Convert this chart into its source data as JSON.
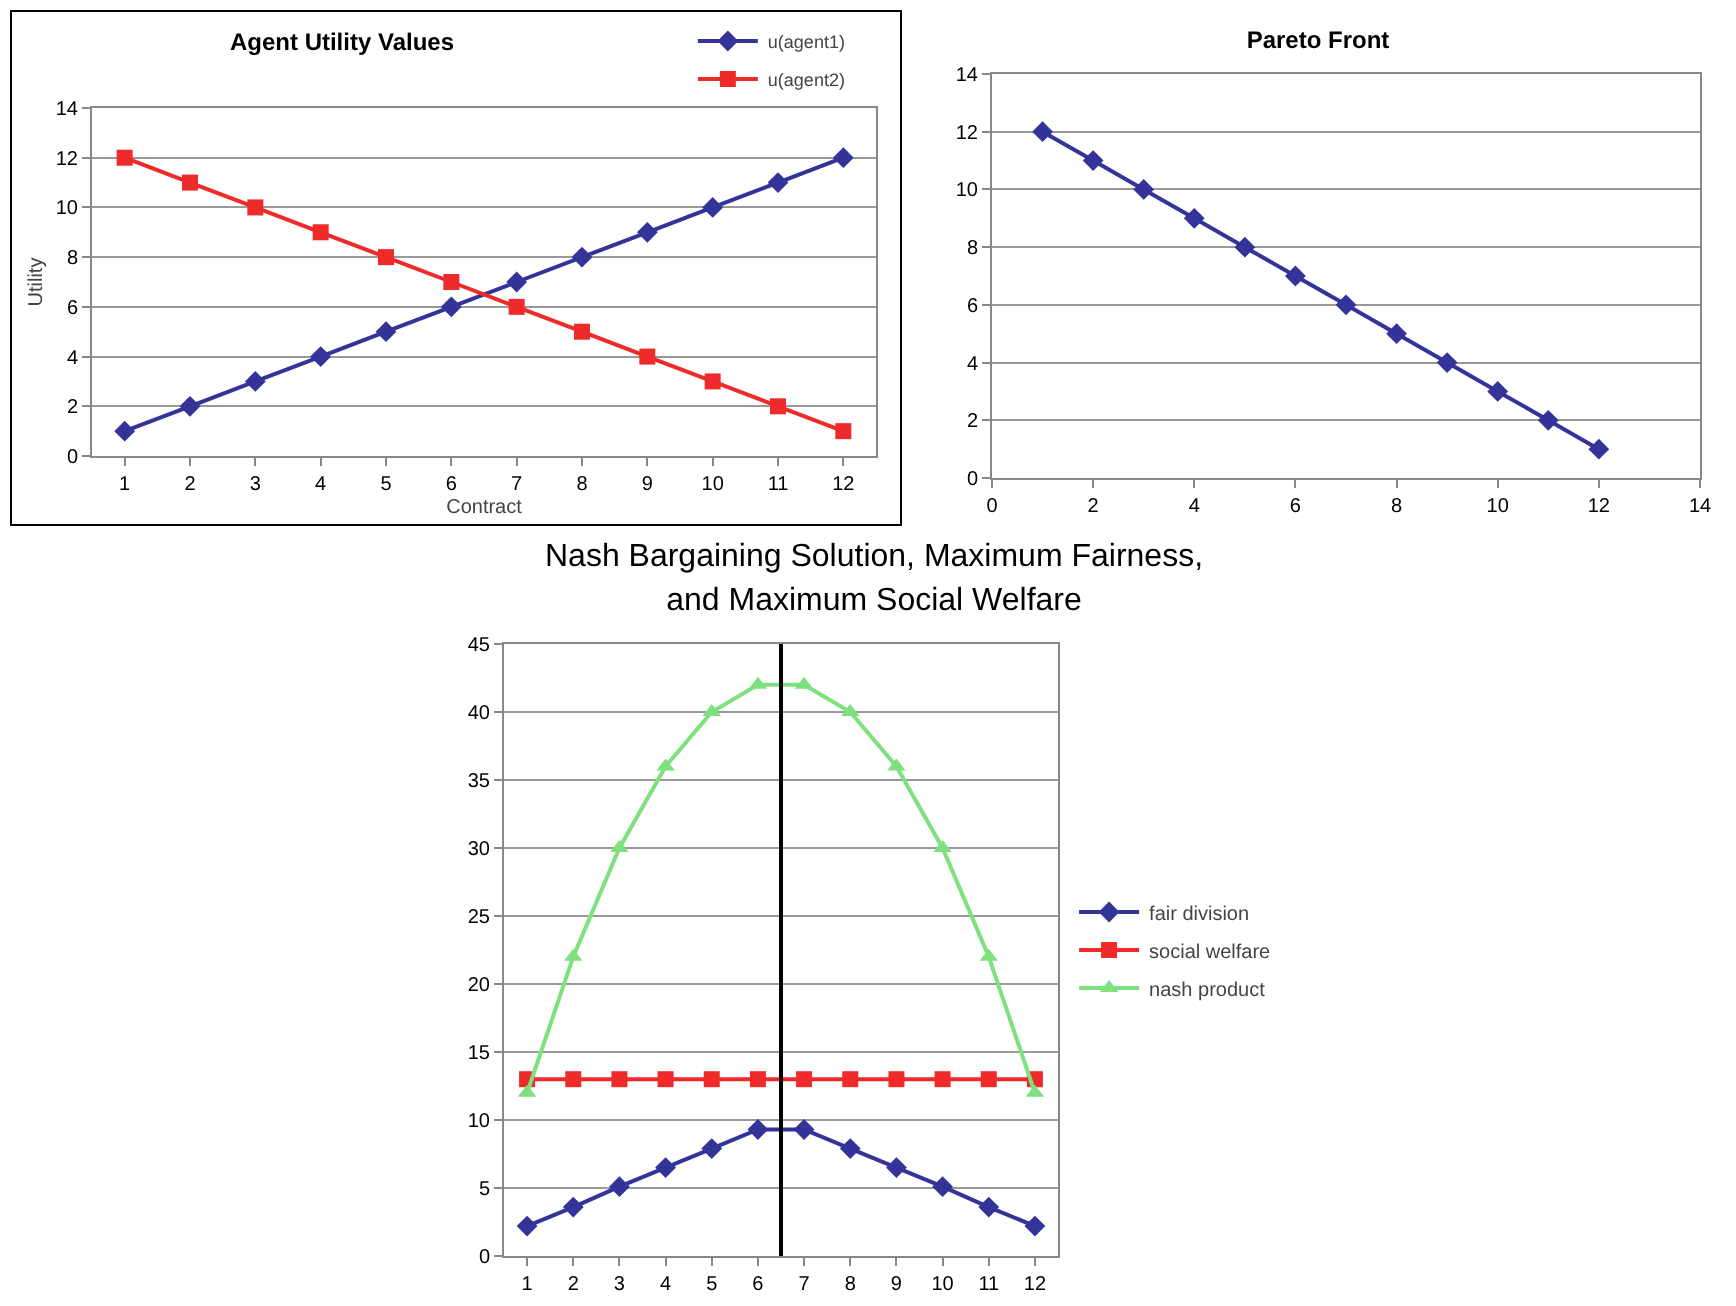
{
  "chart_data": [
    {
      "type": "line",
      "title": "Agent Utility Values",
      "xlabel": "Contract",
      "ylabel": "Utility",
      "x": [
        1,
        2,
        3,
        4,
        5,
        6,
        7,
        8,
        9,
        10,
        11,
        12
      ],
      "xlim": [
        0.5,
        12.5
      ],
      "xticks": [
        1,
        2,
        3,
        4,
        5,
        6,
        7,
        8,
        9,
        10,
        11,
        12
      ],
      "ylim": [
        0,
        14
      ],
      "yticks": [
        0,
        2,
        4,
        6,
        8,
        10,
        12,
        14
      ],
      "grid": "y",
      "legend": "top right",
      "series": [
        {
          "name": "u(agent1)",
          "color": "#333399",
          "marker": "diamond",
          "values": [
            1,
            2,
            3,
            4,
            5,
            6,
            7,
            8,
            9,
            10,
            11,
            12
          ]
        },
        {
          "name": "u(agent2)",
          "color": "#ee2a2a",
          "marker": "square",
          "values": [
            12,
            11,
            10,
            9,
            8,
            7,
            6,
            5,
            4,
            3,
            2,
            1
          ]
        }
      ]
    },
    {
      "type": "line",
      "title": "Pareto Front",
      "x": [
        1,
        2,
        3,
        4,
        5,
        6,
        7,
        8,
        9,
        10,
        11,
        12
      ],
      "xlim": [
        0,
        14
      ],
      "xticks": [
        0,
        2,
        4,
        6,
        8,
        10,
        12,
        14
      ],
      "ylim": [
        0,
        14
      ],
      "yticks": [
        0,
        2,
        4,
        6,
        8,
        10,
        12,
        14
      ],
      "grid": "y",
      "legend": false,
      "series": [
        {
          "color": "#333399",
          "marker": "diamond",
          "values": [
            12,
            11,
            10,
            9,
            8,
            7,
            6,
            5,
            4,
            3,
            2,
            1
          ]
        }
      ]
    },
    {
      "type": "line",
      "title": "Nash Bargaining Solution, Maximum Fairness, and Maximum Social Welfare",
      "x": [
        1,
        2,
        3,
        4,
        5,
        6,
        7,
        8,
        9,
        10,
        11,
        12
      ],
      "xlim": [
        0.5,
        12.5
      ],
      "xticks": [
        1,
        2,
        3,
        4,
        5,
        6,
        7,
        8,
        9,
        10,
        11,
        12
      ],
      "ylim": [
        0,
        45
      ],
      "yticks": [
        0,
        5,
        10,
        15,
        20,
        25,
        30,
        35,
        40,
        45
      ],
      "grid": "y",
      "legend": "right",
      "ref_lines": [
        {
          "axis": "x",
          "value": 6.5,
          "color": "#000000"
        }
      ],
      "series": [
        {
          "name": "fair division",
          "color": "#333399",
          "marker": "diamond",
          "values": [
            2.2,
            3.6,
            5.1,
            6.5,
            7.9,
            9.3,
            9.3,
            7.9,
            6.5,
            5.1,
            3.6,
            2.2
          ]
        },
        {
          "name": "social welfare",
          "color": "#ee2a2a",
          "marker": "square",
          "values": [
            13,
            13,
            13,
            13,
            13,
            13,
            13,
            13,
            13,
            13,
            13,
            13
          ]
        },
        {
          "name": "nash product",
          "color": "#7fe07f",
          "marker": "triangle",
          "values": [
            12,
            22,
            30,
            36,
            40,
            42,
            42,
            40,
            36,
            30,
            22,
            12
          ]
        }
      ]
    }
  ]
}
